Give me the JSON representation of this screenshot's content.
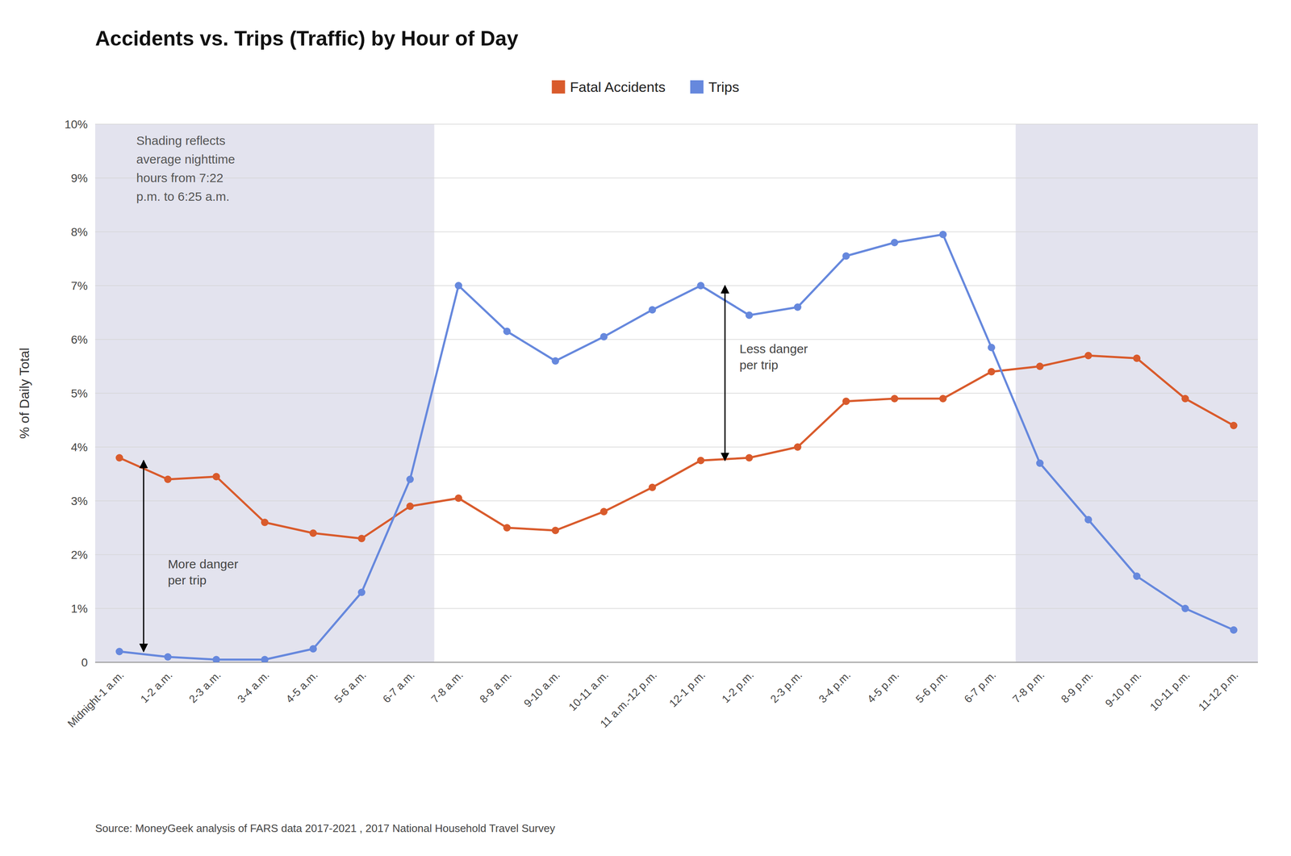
{
  "chart_data": {
    "type": "line",
    "title": "Accidents vs. Trips (Traffic) by Hour of Day",
    "ylabel": "% of Daily Total",
    "source": "Source: MoneyGeek analysis of FARS data 2017-2021 , 2017 National Household Travel Survey",
    "note": "Shading reflects\naverage nighttime\nhours from 7:22\np.m. to 6:25 a.m.",
    "categories": [
      "Midnight-1 a.m.",
      "1-2 a.m.",
      "2-3 a.m.",
      "3-4 a.m.",
      "4-5 a.m.",
      "5-6 a.m.",
      "6-7 a.m.",
      "7-8 a.m.",
      "8-9 a.m.",
      "9-10 a.m.",
      "10-11 a.m.",
      "11 a.m.-12 p.m.",
      "12-1 p.m.",
      "1-2 p.m.",
      "2-3 p.m.",
      "3-4 p.m.",
      "4-5 p.m.",
      "5-6 p.m.",
      "6-7 p.m.",
      "7-8 p.m.",
      "8-9 p.m.",
      "9-10 p.m.",
      "10-11 p.m.",
      "11-12 p.m."
    ],
    "series": [
      {
        "name": "Fatal Accidents",
        "color": "#D95B2C",
        "values": [
          3.8,
          3.4,
          3.45,
          2.6,
          2.4,
          2.3,
          2.9,
          3.05,
          2.5,
          2.45,
          2.8,
          3.25,
          3.75,
          3.8,
          4.0,
          4.85,
          4.9,
          4.9,
          5.4,
          5.5,
          5.7,
          5.65,
          4.9,
          4.4
        ]
      },
      {
        "name": "Trips",
        "color": "#6688DD",
        "values": [
          0.2,
          0.1,
          0.05,
          0.05,
          0.25,
          1.3,
          3.4,
          7.0,
          6.15,
          5.6,
          6.05,
          6.55,
          7.0,
          6.45,
          6.6,
          7.55,
          7.8,
          7.95,
          5.85,
          3.7,
          2.65,
          1.6,
          1.0,
          0.6
        ]
      }
    ],
    "shading": [
      {
        "from": "Midnight-1 a.m.",
        "to": "6-7 a.m."
      },
      {
        "from": "7-8 p.m.",
        "to": "11-12 p.m."
      }
    ],
    "annotations": [
      {
        "text": "More danger\nper trip",
        "y_from": 0.2,
        "y_to": 3.75
      },
      {
        "text": "Less danger\nper trip",
        "y_from": 3.75,
        "y_to": 7.0
      }
    ],
    "ylim": [
      0,
      10
    ],
    "yticks": [
      0,
      {
        "value": 1,
        "label": "1%"
      },
      {
        "value": 2,
        "label": "2%"
      },
      {
        "value": 3,
        "label": "3%"
      },
      {
        "value": 4,
        "label": "4%"
      },
      {
        "value": 5,
        "label": "5%"
      },
      {
        "value": 6,
        "label": "6%"
      },
      {
        "value": 7,
        "label": "7%"
      },
      {
        "value": 8,
        "label": "8%"
      },
      {
        "value": 9,
        "label": "9%"
      },
      {
        "value": 10,
        "label": "10%"
      }
    ],
    "grid": true,
    "legend": "top",
    "marker": "circle"
  }
}
